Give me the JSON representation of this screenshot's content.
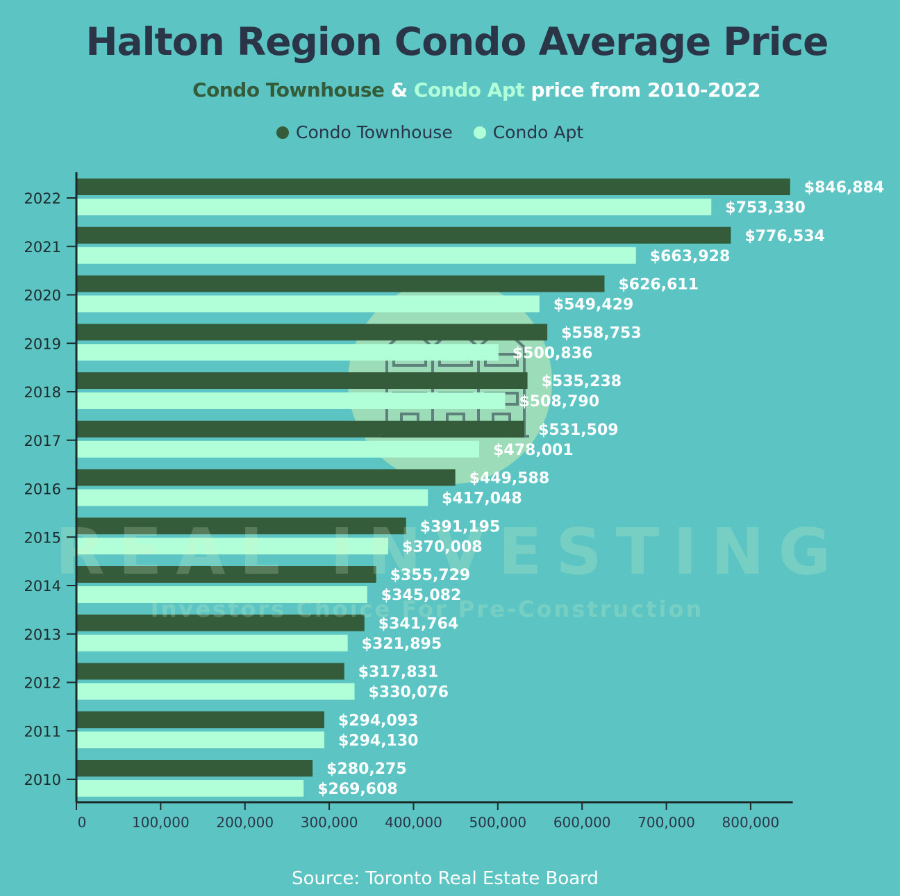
{
  "title": "Halton Region Condo Average Price",
  "subtitle": {
    "part1": "Condo Townhouse",
    "sep": " & ",
    "part2": "Condo Apt",
    "part3": " price from 2010-2022"
  },
  "source": "Source: Toronto Real Estate Board",
  "watermark": {
    "main": "REAL INVESTING",
    "tagline": "Investors Choice For Pre-Construction"
  },
  "colors": {
    "background": "#5cc5c4",
    "townhouse": "#345b3a",
    "apt": "#b1ffd8",
    "axis": "#1c2a2a",
    "title": "#2b3548"
  },
  "chart_data": {
    "type": "bar",
    "orientation": "horizontal",
    "title": "Halton Region Condo Average Price",
    "subtitle": "Condo Townhouse & Condo Apt price from 2010-2022",
    "categories": [
      "2022",
      "2021",
      "2020",
      "2019",
      "2018",
      "2017",
      "2016",
      "2015",
      "2014",
      "2013",
      "2012",
      "2011",
      "2010"
    ],
    "series": [
      {
        "name": "Condo Townhouse",
        "values": [
          846884,
          776534,
          626611,
          558753,
          535238,
          531509,
          449588,
          391195,
          355729,
          341764,
          317831,
          294093,
          280275
        ],
        "labels": [
          "$846,884",
          "$776,534",
          "$626,611",
          "$558,753",
          "$535,238",
          "$531,509",
          "$449,588",
          "$391,195",
          "$355,729",
          "$341,764",
          "$317,831",
          "$294,093",
          "$280,275"
        ]
      },
      {
        "name": "Condo Apt",
        "values": [
          753330,
          663928,
          549429,
          500836,
          508790,
          478001,
          417048,
          370008,
          345082,
          321895,
          330076,
          294130,
          269608
        ],
        "labels": [
          "$753,330",
          "$663,928",
          "$549,429",
          "$500,836",
          "$508,790",
          "$478,001",
          "$417,048",
          "$370,008",
          "$345,082",
          "$321,895",
          "$330,076",
          "$294,130",
          "$269,608"
        ]
      }
    ],
    "xlim": [
      0,
      850000
    ],
    "xticks": [
      0,
      100000,
      200000,
      300000,
      400000,
      500000,
      600000,
      700000,
      800000
    ],
    "xtick_labels": [
      "0",
      "100,000",
      "200,000",
      "300,000",
      "400,000",
      "500,000",
      "600,000",
      "700,000",
      "800,000"
    ],
    "legend": "top-center",
    "grid": false
  }
}
